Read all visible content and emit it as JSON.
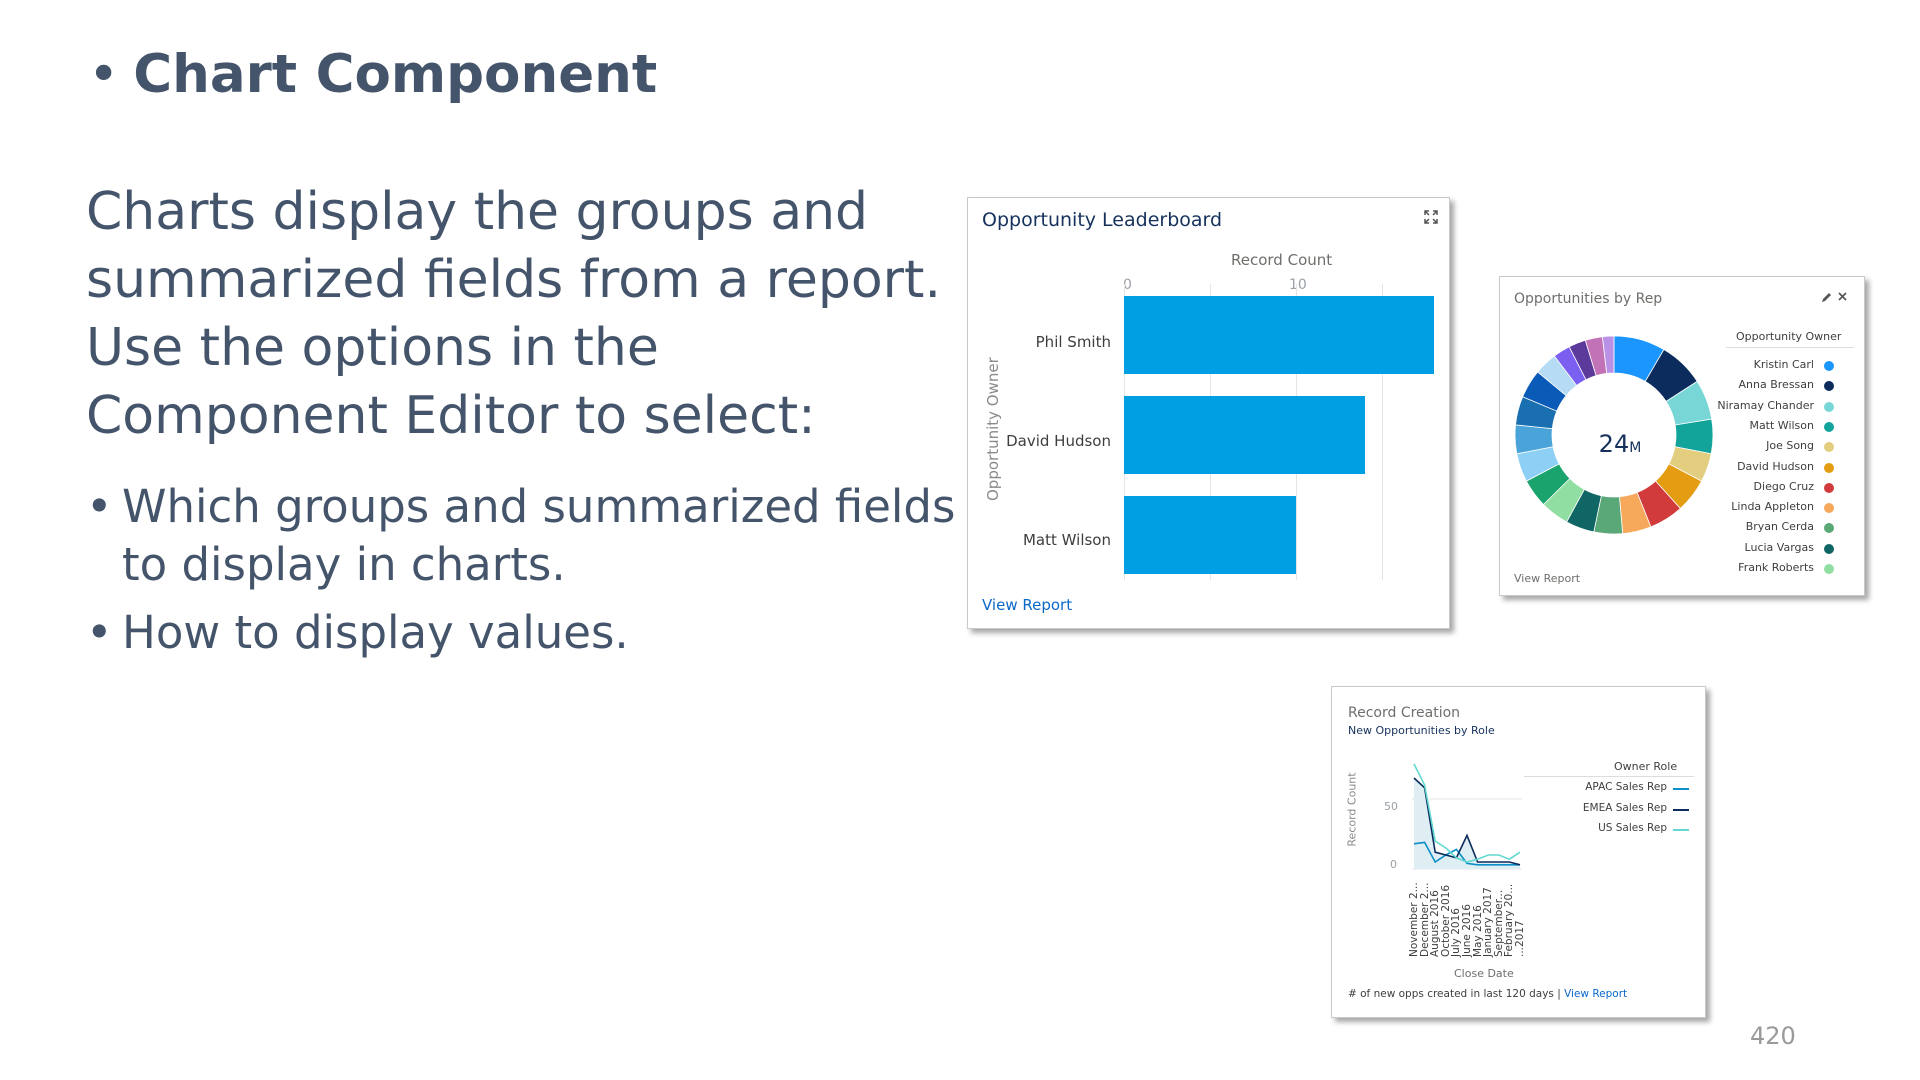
{
  "slide": {
    "title": "Chart Component",
    "bullet_char": "•",
    "intro_lines": [
      "Charts display the groups and",
      "summarized fields from a report.",
      "Use the options in the",
      "Component Editor to select:"
    ],
    "bullets": [
      [
        "Which groups and summarized fields",
        "to display in charts."
      ],
      [
        "How to display values."
      ]
    ],
    "page_number": "420"
  },
  "leaderboard": {
    "title": "Opportunity Leaderboard",
    "expand_icon": "expand-icon",
    "view_report": "View Report",
    "chart_data": {
      "type": "bar",
      "orientation": "horizontal",
      "title": "Opportunity Leaderboard",
      "xlabel": "Record Count",
      "ylabel": "Opportunity Owner",
      "x_ticks": [
        "0",
        "10"
      ],
      "xlim": [
        0,
        18
      ],
      "categories": [
        "Phil Smith",
        "David Hudson",
        "Matt Wilson"
      ],
      "values": [
        18,
        14,
        10
      ],
      "bar_color": "#009ee2"
    }
  },
  "reps": {
    "title": "Opportunities by Rep",
    "edit_icon": "pencil-icon",
    "close_icon": "close-icon",
    "center_value": "24",
    "center_unit": "M",
    "view_report": "View Report",
    "chart_data": {
      "type": "pie",
      "variant": "donut",
      "title": "Opportunities by Rep",
      "total": "24M",
      "legend_title": "Opportunity Owner",
      "legend": [
        {
          "name": "Kristin Carl",
          "color": "#1b96ff"
        },
        {
          "name": "Anna Bressan",
          "color": "#0b2c5c"
        },
        {
          "name": "Niramay Chander",
          "color": "#78d7d6"
        },
        {
          "name": "Matt Wilson",
          "color": "#12a39a"
        },
        {
          "name": "Joe Song",
          "color": "#e3cd7f"
        },
        {
          "name": "David Hudson",
          "color": "#e49c12"
        },
        {
          "name": "Diego Cruz",
          "color": "#d23b3b"
        },
        {
          "name": "Linda Appleton",
          "color": "#f6a95a"
        },
        {
          "name": "Bryan Cerda",
          "color": "#5aa878"
        },
        {
          "name": "Lucia Vargas",
          "color": "#0f6664"
        },
        {
          "name": "Frank Roberts",
          "color": "#91dea3"
        }
      ],
      "slices": [
        {
          "color": "#1b96ff",
          "value": 9
        },
        {
          "color": "#0b2c5c",
          "value": 8
        },
        {
          "color": "#78d7d6",
          "value": 7
        },
        {
          "color": "#12a39a",
          "value": 6
        },
        {
          "color": "#e3cd7f",
          "value": 5
        },
        {
          "color": "#e49c12",
          "value": 6
        },
        {
          "color": "#d23b3b",
          "value": 6
        },
        {
          "color": "#f6a95a",
          "value": 5
        },
        {
          "color": "#5aa878",
          "value": 5
        },
        {
          "color": "#0f6664",
          "value": 5
        },
        {
          "color": "#91dea3",
          "value": 5
        },
        {
          "color": "#1aa36d",
          "value": 5
        },
        {
          "color": "#8ed0f5",
          "value": 5
        },
        {
          "color": "#4aa3d9",
          "value": 5
        },
        {
          "color": "#1a6fb0",
          "value": 5
        },
        {
          "color": "#0a5ab7",
          "value": 5
        },
        {
          "color": "#b5dbf5",
          "value": 4
        },
        {
          "color": "#7a5ff0",
          "value": 3
        },
        {
          "color": "#5b3a9b",
          "value": 3
        },
        {
          "color": "#c272b6",
          "value": 3
        },
        {
          "color": "#b992e8",
          "value": 2
        }
      ]
    }
  },
  "record": {
    "title": "Record Creation",
    "subtitle": "New Opportunities by Role",
    "footer_text": "# of new opps created in last 120 days | ",
    "footer_link": "View Report",
    "chart_data": {
      "type": "line",
      "title": "Record Creation",
      "subtitle": "New Opportunities by Role",
      "xlabel": "Close Date",
      "ylabel": "Record Count",
      "y_ticks": [
        "0",
        "50"
      ],
      "ylim": [
        0,
        80
      ],
      "x_tick_labels": [
        "November 2...",
        "December 2...",
        "August 2016",
        "October 2016",
        "July 2016",
        "June 2016",
        "May 2016",
        "January 2017",
        "September...",
        "February 20...",
        "...2017"
      ],
      "legend_title": "Owner Role",
      "series": [
        {
          "name": "APAC Sales Rep",
          "color": "#0b8ec9",
          "values": [
            18,
            19,
            5,
            10,
            14,
            4,
            3,
            3,
            3,
            3,
            3
          ]
        },
        {
          "name": "EMEA Sales Rep",
          "color": "#0b2c5c",
          "values": [
            65,
            58,
            12,
            10,
            8,
            24,
            5,
            5,
            5,
            5,
            3
          ]
        },
        {
          "name": "US Sales Rep",
          "color": "#62d8d0",
          "values": [
            75,
            60,
            20,
            15,
            8,
            5,
            7,
            10,
            10,
            7,
            12
          ]
        }
      ]
    }
  }
}
